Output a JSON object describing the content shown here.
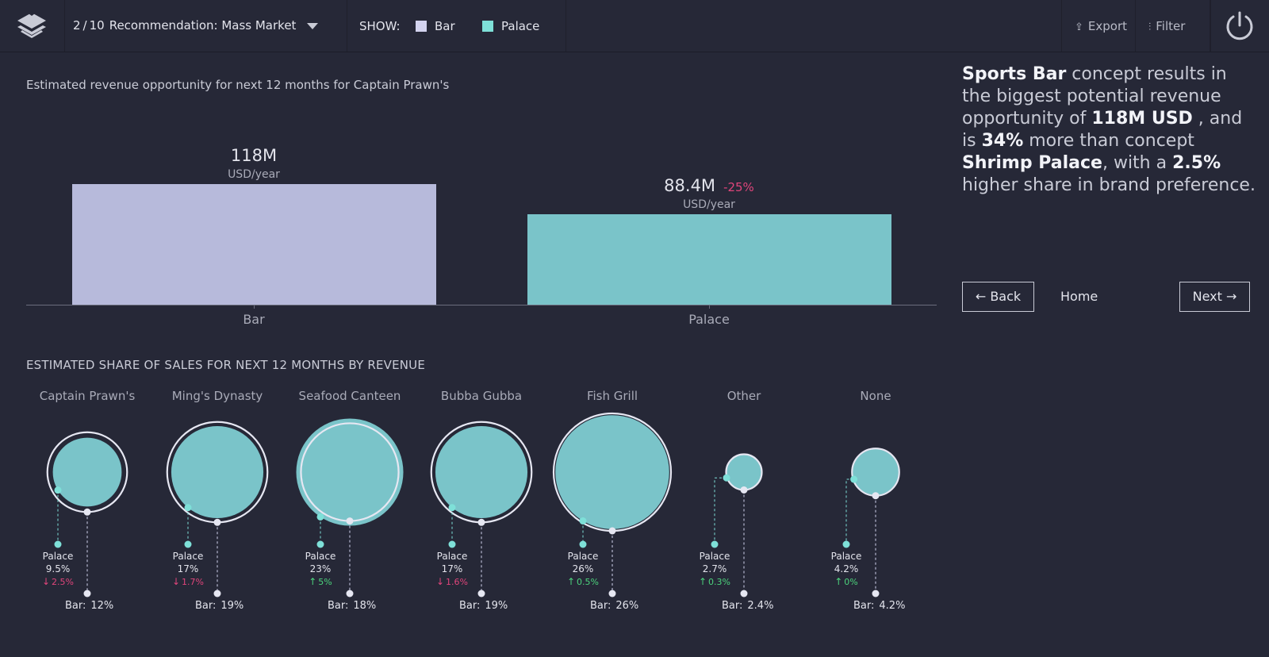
{
  "header": {
    "page_current": "2",
    "page_sep": "/",
    "page_total": "10",
    "recommendation": "Recommendation: Mass Market",
    "show_label": "SHOW:",
    "legend": [
      {
        "label": "Bar",
        "color": "#d3d3ef"
      },
      {
        "label": "Palace",
        "color": "#7ee0d8"
      }
    ],
    "export_label": "Export",
    "filter_label": "Filter",
    "icons": {
      "logo": "layers-logo-icon",
      "export": "share-icon",
      "filter": "sliders-icon",
      "power": "power-icon",
      "caret": "caret-down-icon"
    }
  },
  "revenue": {
    "title": "Estimated revenue opportunity for next 12 months for Captain Prawn's"
  },
  "share": {
    "title": "ESTIMATED SHARE OF SALES FOR NEXT 12 MONTHS BY REVENUE",
    "bar_prefix": "Bar:",
    "palace_label": "Palace"
  },
  "chart_data": [
    {
      "type": "bar",
      "categories": [
        "Bar",
        "Palace"
      ],
      "values": [
        118,
        88.4
      ],
      "value_labels": [
        "118M",
        "88.4M"
      ],
      "unit": "USD/year",
      "delta_labels": [
        "",
        "-25%"
      ],
      "colors": [
        "#b7badb",
        "#7ac4c9"
      ]
    },
    {
      "type": "bubble",
      "categories": [
        "Captain Prawn's",
        "Ming's Dynasty",
        "Seafood Canteen",
        "Bubba Gubba",
        "Fish Grill",
        "Other",
        "None"
      ],
      "series": [
        {
          "name": "Bar",
          "values": [
            12,
            19,
            18,
            19,
            26,
            2.4,
            4.2
          ],
          "labels": [
            "12%",
            "19%",
            "18%",
            "19%",
            "26%",
            "2.4%",
            "4.2%"
          ]
        },
        {
          "name": "Palace",
          "values": [
            9.5,
            17,
            23,
            17,
            26,
            2.7,
            4.2
          ],
          "labels": [
            "9.5%",
            "17%",
            "23%",
            "17%",
            "26%",
            "2.7%",
            "4.2%"
          ]
        }
      ],
      "palace_delta": [
        {
          "dir": "down",
          "arrow": "↓",
          "value": "2.5%"
        },
        {
          "dir": "down",
          "arrow": "↓",
          "value": "1.7%"
        },
        {
          "dir": "up",
          "arrow": "↑",
          "value": "5%"
        },
        {
          "dir": "down",
          "arrow": "↓",
          "value": "1.6%"
        },
        {
          "dir": "up",
          "arrow": "↑",
          "value": "0.5%"
        },
        {
          "dir": "up",
          "arrow": "↑",
          "value": "0.3%"
        },
        {
          "dir": "up",
          "arrow": "↑",
          "value": "0%"
        }
      ]
    }
  ],
  "insight": {
    "p1": "Sports Bar",
    "p2": " concept results in the biggest potential revenue opportunity of ",
    "p3": "118M USD",
    "p4": " , and is ",
    "p5": "34%",
    "p6": " more than concept ",
    "p7": "Shrimp Palace",
    "p8": ", with a ",
    "p9": "2.5%",
    "p10": " higher share in brand preference."
  },
  "nav": {
    "back_label": "← Back",
    "home_label": "Home",
    "next_label": "Next →"
  }
}
